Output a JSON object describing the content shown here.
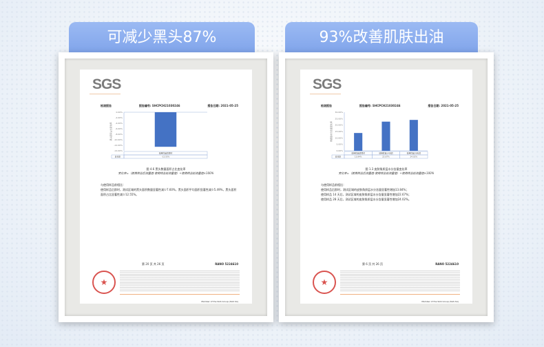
{
  "tabs": [
    "可减少黑头87%",
    "93%改善肌肤出油"
  ],
  "reports": [
    {
      "logo": "SGS",
      "doc_type": "检测报告",
      "report_no": "报告编号: SHCPCH21030246",
      "report_date": "报告日期: 2021-05-25",
      "caption": "图 4.6 黑头数量面积占比变化率",
      "formula": "变化率=（使用样品后测量值-使用样品前测量值）÷使用样品前测量值×100%",
      "row_header": "变化率",
      "text": [
        "与使用样品前相比：",
        "使用样品后即时，测试区域的黑头面积数量显著性减少7.60%，黑头面积平均面积显著性减少5.49%，黑头面积面积占比显著性减少12.55%。"
      ],
      "page": "第 20 页 共 26 页",
      "rano": "RANO 5224610",
      "member": "Member of the SGS Group (SGS SA)"
    },
    {
      "logo": "SGS",
      "doc_type": "检测报告",
      "report_no": "报告编号: SHCPCH21030246",
      "report_date": "报告日期: 2021-05-25",
      "caption": "图 1.3 皮肤角质层水分含量变化率",
      "formula": "变化率=（使用样品后测量值-使用样品前测量值）÷使用样品前测量值×100%",
      "row_header": "变化率",
      "text": [
        "与使用样品前相比：",
        "使用样品后即时，测试区域的皮肤角质层水分含量显著性增加13.84%；",
        "使用样品 14 天后，测试区域的皮肤角质层水分含量显著性增加22.67%；",
        "使用样品 28 天后，测试区域的皮肤角质层水分含量显著性增加24.02%。"
      ],
      "page": "第 6 页 共 26 页",
      "rano": "RANO 5224610",
      "member": "Member of the SGS Group (SGS SA)"
    }
  ],
  "chart_data": [
    {
      "type": "bar",
      "categories": [
        "使用样品后即时"
      ],
      "values": [
        -12.55
      ],
      "value_labels": [
        "-12.55%"
      ],
      "ylim": [
        -14,
        0
      ],
      "yticks": [
        0,
        -2,
        -4,
        -6,
        -8,
        -10,
        -12,
        -14
      ],
      "ylabel": "黑头面积占比变化率",
      "color": "#4472c4"
    },
    {
      "type": "bar",
      "categories": [
        "使用样品后即时",
        "使用样品14天后",
        "使用样品28天后"
      ],
      "values": [
        13.84,
        22.67,
        24.02
      ],
      "value_labels": [
        "13.84%",
        "22.67%",
        "24.02%"
      ],
      "ylim": [
        0,
        30
      ],
      "yticks": [
        0,
        5,
        10,
        15,
        20,
        25,
        30
      ],
      "ylabel": "角质层水分含量变化率",
      "color": "#4472c4"
    }
  ]
}
